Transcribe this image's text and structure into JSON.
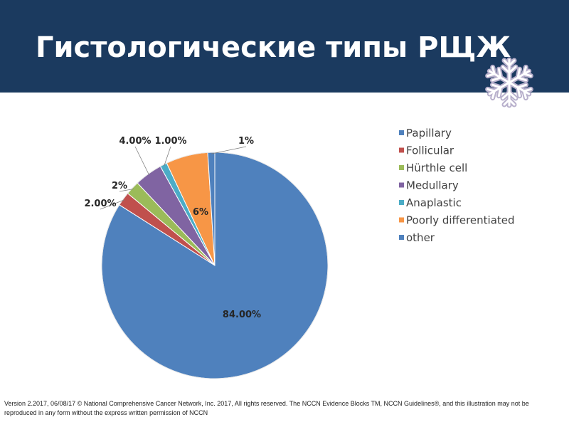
{
  "slide": {
    "title": "Гистологические типы РЩЖ",
    "footer": "Version 2.2017, 06/08/17 © National Comprehensive Cancer Network, Inc. 2017, All rights reserved. The NCCN Evidence Blocks TM, NCCN Guidelines®, and this illustration may not be reproduced in any form without the express written permission of NCCN",
    "decoration_icon": "snowflake-icon",
    "colors": {
      "header": "#1b3a5f"
    }
  },
  "chart_data": {
    "type": "pie",
    "start": "top, clockwise",
    "legend_position": "right",
    "slices": [
      {
        "name": "Papillary",
        "value": 84,
        "label": "84.00%",
        "color": "#4f81bd"
      },
      {
        "name": "Follicular",
        "value": 2,
        "label": "2.00%",
        "color": "#c0504d"
      },
      {
        "name": "Hürthle cell",
        "value": 2,
        "label": "2%",
        "color": "#9bbb59"
      },
      {
        "name": "Medullary",
        "value": 4,
        "label": "4.00%",
        "color": "#8064a2"
      },
      {
        "name": "Anaplastic",
        "value": 1,
        "label": "1.00%",
        "color": "#4bacc6"
      },
      {
        "name": "Poorly differentiated",
        "value": 6,
        "label": "6%",
        "color": "#f79646"
      },
      {
        "name": "other",
        "value": 1,
        "label": "1%",
        "color": "#4f81bd"
      }
    ]
  }
}
